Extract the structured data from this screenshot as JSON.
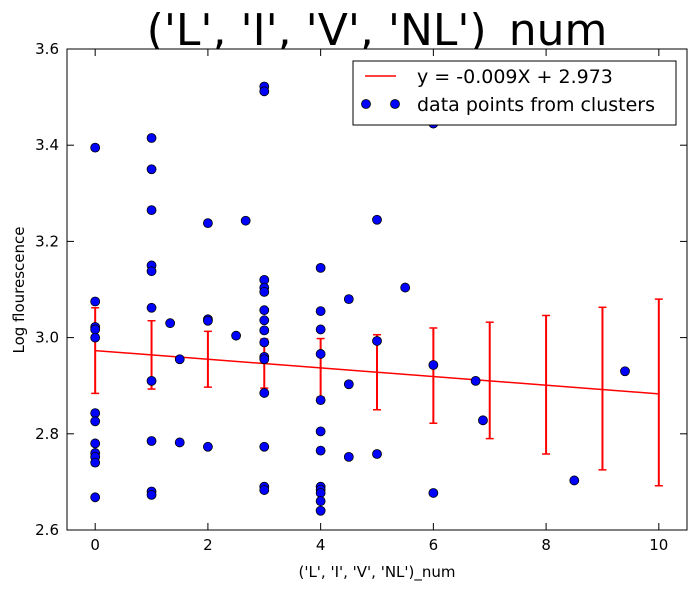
{
  "chart_data": {
    "type": "scatter",
    "title": "('L', 'I', 'V', 'NL')_num",
    "xlabel": "('L', 'I', 'V', 'NL')_num",
    "ylabel": "Log flourescence",
    "xlim": [
      -0.5,
      10.5
    ],
    "ylim": [
      2.6,
      3.6
    ],
    "xticks": [
      "0",
      "2",
      "4",
      "6",
      "8",
      "10"
    ],
    "yticks": [
      "2.6",
      "2.8",
      "3.0",
      "3.2",
      "3.4",
      "3.6"
    ],
    "grid": false,
    "legend_position": "top-right",
    "series": [
      {
        "name": "data points from clusters",
        "kind": "scatter",
        "color": "#0000ff",
        "points": [
          [
            0,
            3.395
          ],
          [
            0,
            3.075
          ],
          [
            0,
            3.022
          ],
          [
            0,
            3.017
          ],
          [
            0,
            3.0
          ],
          [
            0,
            2.843
          ],
          [
            0,
            2.826
          ],
          [
            0,
            2.78
          ],
          [
            0,
            2.76
          ],
          [
            0,
            2.752
          ],
          [
            0,
            2.74
          ],
          [
            0,
            2.668
          ],
          [
            1,
            3.415
          ],
          [
            1,
            3.35
          ],
          [
            1,
            3.265
          ],
          [
            1,
            3.15
          ],
          [
            1,
            3.138
          ],
          [
            1,
            3.062
          ],
          [
            1,
            2.91
          ],
          [
            1,
            2.785
          ],
          [
            1,
            2.68
          ],
          [
            1,
            2.673
          ],
          [
            1.33,
            3.03
          ],
          [
            1.5,
            2.955
          ],
          [
            1.5,
            2.782
          ],
          [
            2,
            3.238
          ],
          [
            2,
            3.038
          ],
          [
            2,
            3.035
          ],
          [
            2,
            2.773
          ],
          [
            2.5,
            3.004
          ],
          [
            2.67,
            3.243
          ],
          [
            3,
            3.522
          ],
          [
            3,
            3.512
          ],
          [
            3,
            3.12
          ],
          [
            3,
            3.104
          ],
          [
            3,
            3.095
          ],
          [
            3,
            3.057
          ],
          [
            3,
            3.036
          ],
          [
            3,
            3.015
          ],
          [
            3,
            2.99
          ],
          [
            3,
            2.96
          ],
          [
            3,
            2.955
          ],
          [
            3,
            2.885
          ],
          [
            3,
            2.773
          ],
          [
            3,
            2.69
          ],
          [
            3,
            2.683
          ],
          [
            4,
            3.145
          ],
          [
            4,
            3.055
          ],
          [
            4,
            3.017
          ],
          [
            4,
            2.966
          ],
          [
            4,
            2.87
          ],
          [
            4,
            2.805
          ],
          [
            4,
            2.765
          ],
          [
            4,
            2.69
          ],
          [
            4,
            2.684
          ],
          [
            4,
            2.677
          ],
          [
            4,
            2.66
          ],
          [
            4,
            2.64
          ],
          [
            4.5,
            3.08
          ],
          [
            4.5,
            2.903
          ],
          [
            4.5,
            2.752
          ],
          [
            5,
            3.245
          ],
          [
            5,
            2.993
          ],
          [
            5,
            2.758
          ],
          [
            5.5,
            3.104
          ],
          [
            6,
            3.445
          ],
          [
            6,
            2.943
          ],
          [
            6,
            2.677
          ],
          [
            6.75,
            2.91
          ],
          [
            6.88,
            2.828
          ],
          [
            8.5,
            2.703
          ],
          [
            9.4,
            2.93
          ]
        ]
      },
      {
        "name": "y = -0.009X + 2.973",
        "kind": "line",
        "color": "#ff0000",
        "x": [
          0,
          10
        ],
        "y": [
          2.973,
          2.883
        ]
      }
    ],
    "error_bars": {
      "color": "#ff0000",
      "x": [
        0,
        1,
        2,
        3,
        4,
        5,
        6,
        7,
        8,
        9,
        10
      ],
      "center": [
        2.973,
        2.964,
        2.955,
        2.946,
        2.937,
        2.928,
        2.919,
        2.91,
        2.901,
        2.892,
        2.883
      ],
      "low": [
        2.884,
        2.893,
        2.897,
        2.895,
        2.876,
        2.85,
        2.822,
        2.79,
        2.758,
        2.725,
        2.692
      ],
      "high": [
        3.062,
        3.035,
        3.013,
        2.997,
        2.998,
        3.006,
        3.02,
        3.032,
        3.046,
        3.063,
        3.08
      ]
    }
  }
}
